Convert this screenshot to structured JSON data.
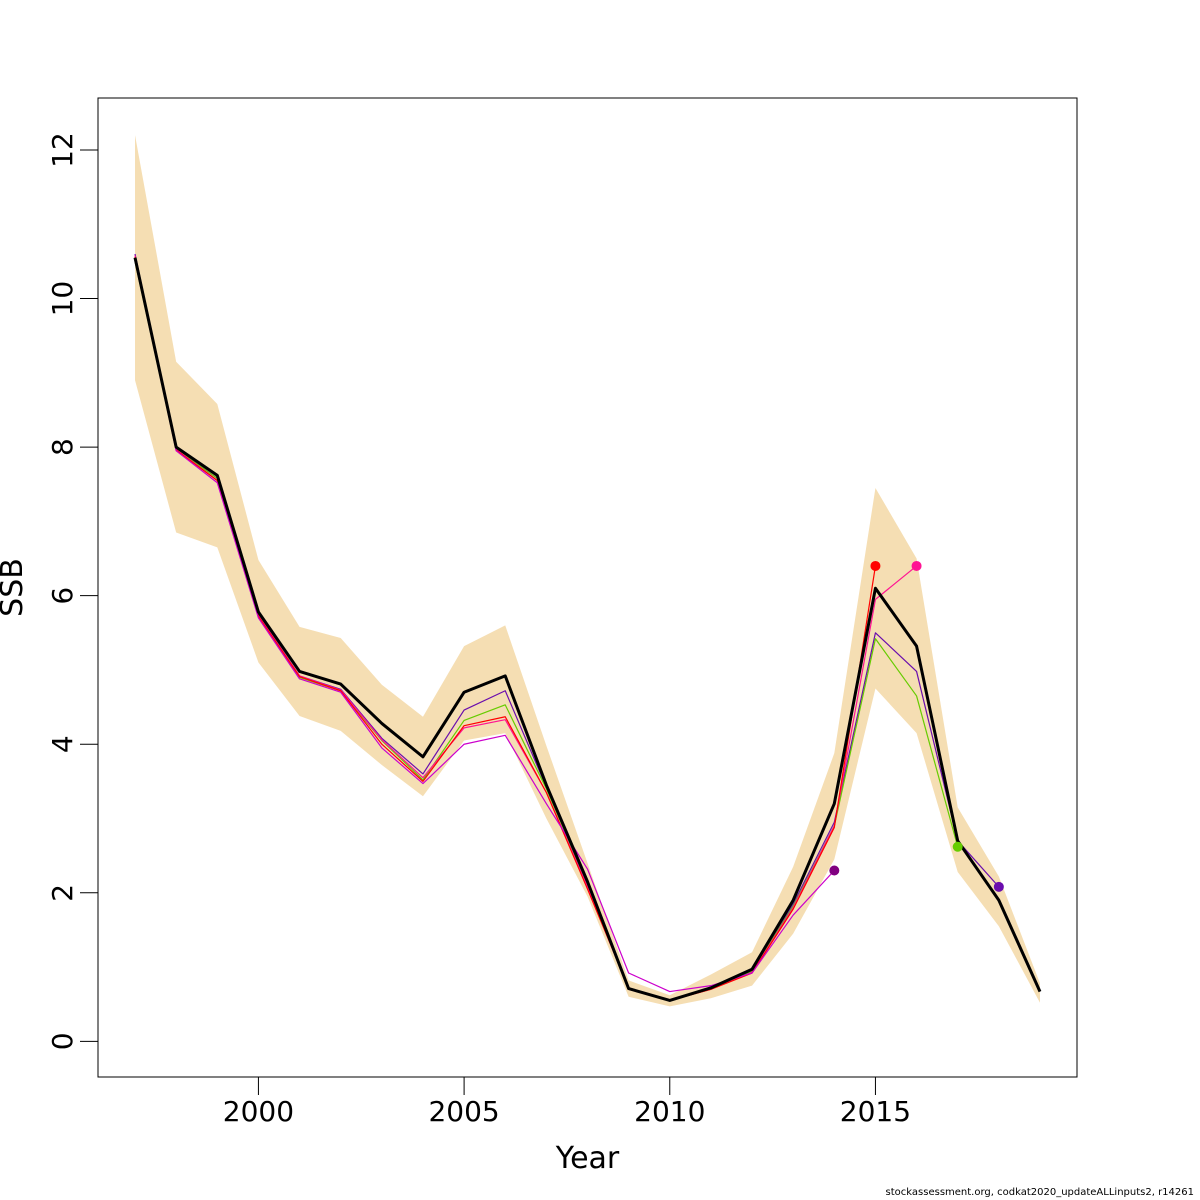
{
  "chart_data": {
    "type": "line",
    "title": "",
    "xlabel": "Year",
    "ylabel": "SSB",
    "xlim": [
      1996.1,
      2019.9
    ],
    "ylim": [
      -0.48,
      12.7
    ],
    "x_ticks": [
      2000,
      2005,
      2010,
      2015
    ],
    "y_ticks": [
      0,
      2,
      4,
      6,
      8,
      10,
      12
    ],
    "grid": false,
    "legend": "none",
    "confidence_band": {
      "color": "#f5deb3",
      "x": [
        1997,
        1998,
        1999,
        2000,
        2001,
        2002,
        2003,
        2004,
        2005,
        2006,
        2007,
        2008,
        2009,
        2010,
        2011,
        2012,
        2013,
        2014,
        2015,
        2016,
        2017,
        2018,
        2019
      ],
      "lower": [
        8.9,
        6.85,
        6.65,
        5.1,
        4.38,
        4.18,
        3.72,
        3.3,
        4.05,
        4.15,
        3.0,
        1.95,
        0.6,
        0.47,
        0.58,
        0.75,
        1.45,
        2.45,
        4.75,
        4.15,
        2.28,
        1.55,
        0.52
      ],
      "upper": [
        12.2,
        9.15,
        8.58,
        6.48,
        5.58,
        5.43,
        4.8,
        4.37,
        5.32,
        5.6,
        3.98,
        2.4,
        0.82,
        0.62,
        0.9,
        1.2,
        2.35,
        3.88,
        7.45,
        6.5,
        3.15,
        2.22,
        0.78
      ]
    },
    "series": [
      {
        "color": "#000000",
        "width": 3,
        "x": [
          1997,
          1998,
          1999,
          2000,
          2001,
          2002,
          2003,
          2004,
          2005,
          2006,
          2007,
          2008,
          2009,
          2010,
          2011,
          2012,
          2013,
          2014,
          2015,
          2016,
          2017,
          2018,
          2019
        ],
        "y": [
          10.55,
          8.0,
          7.62,
          5.78,
          4.98,
          4.81,
          4.28,
          3.83,
          4.7,
          4.92,
          3.45,
          2.15,
          0.71,
          0.55,
          0.72,
          0.97,
          1.9,
          3.2,
          6.1,
          5.32,
          2.7,
          1.9,
          0.67
        ]
      },
      {
        "color": "#6a0dad",
        "width": 1.2,
        "x": [
          1997,
          1998,
          1999,
          2000,
          2001,
          2002,
          2003,
          2004,
          2005,
          2006,
          2007,
          2008,
          2009,
          2010,
          2011,
          2012,
          2013,
          2014,
          2015,
          2016,
          2017,
          2018
        ],
        "y": [
          10.6,
          7.98,
          7.58,
          5.74,
          4.92,
          4.74,
          4.08,
          3.6,
          4.46,
          4.72,
          3.42,
          2.1,
          0.72,
          0.55,
          0.71,
          0.95,
          1.85,
          2.95,
          5.5,
          4.98,
          2.7,
          2.08
        ],
        "end_point": true
      },
      {
        "color": "#66cc00",
        "width": 1.2,
        "x": [
          1997,
          1998,
          1999,
          2000,
          2001,
          2002,
          2003,
          2004,
          2005,
          2006,
          2007,
          2008,
          2009,
          2010,
          2011,
          2012,
          2013,
          2014,
          2015,
          2016,
          2017
        ],
        "y": [
          10.5,
          7.97,
          7.58,
          5.73,
          4.9,
          4.72,
          4.05,
          3.52,
          4.32,
          4.53,
          3.4,
          2.12,
          0.71,
          0.55,
          0.7,
          0.94,
          1.82,
          2.9,
          5.42,
          4.65,
          2.62
        ],
        "end_point": true
      },
      {
        "color": "#ff1493",
        "width": 1.2,
        "x": [
          1997,
          1998,
          1999,
          2000,
          2001,
          2002,
          2003,
          2004,
          2005,
          2006,
          2007,
          2008,
          2009,
          2010,
          2011,
          2012,
          2013,
          2014,
          2015,
          2016
        ],
        "y": [
          10.58,
          7.97,
          7.55,
          5.73,
          4.92,
          4.73,
          4.06,
          3.55,
          4.22,
          4.33,
          3.35,
          2.08,
          0.7,
          0.55,
          0.7,
          0.93,
          1.8,
          2.9,
          5.95,
          6.4
        ],
        "end_point": true
      },
      {
        "color": "#ff0000",
        "width": 1.2,
        "x": [
          1997,
          1998,
          1999,
          2000,
          2001,
          2002,
          2003,
          2004,
          2005,
          2006,
          2007,
          2008,
          2009,
          2010,
          2011,
          2012,
          2013,
          2014,
          2015
        ],
        "y": [
          10.56,
          7.96,
          7.55,
          5.72,
          4.91,
          4.72,
          4.0,
          3.5,
          4.25,
          4.37,
          3.35,
          2.05,
          0.72,
          0.55,
          0.7,
          0.92,
          1.78,
          2.88,
          6.4
        ],
        "end_point": true
      },
      {
        "color": "#cc00cc",
        "width": 1.2,
        "x": [
          1997,
          1998,
          1999,
          2000,
          2001,
          2002,
          2003,
          2004,
          2005,
          2006,
          2007,
          2008,
          2009,
          2010,
          2011,
          2012,
          2013,
          2014
        ],
        "y": [
          10.55,
          7.95,
          7.52,
          5.7,
          4.88,
          4.7,
          3.95,
          3.47,
          4.0,
          4.12,
          3.2,
          2.32,
          0.92,
          0.67,
          0.75,
          0.92,
          1.7,
          2.3
        ],
        "end_point": false
      },
      {
        "color": "#800080",
        "width": 0,
        "x": [
          2014
        ],
        "y": [
          2.3
        ],
        "end_point": true
      }
    ]
  },
  "footer": {
    "note": "stockassessment.org, codkat2020_updateALLinputs2, r14261"
  }
}
